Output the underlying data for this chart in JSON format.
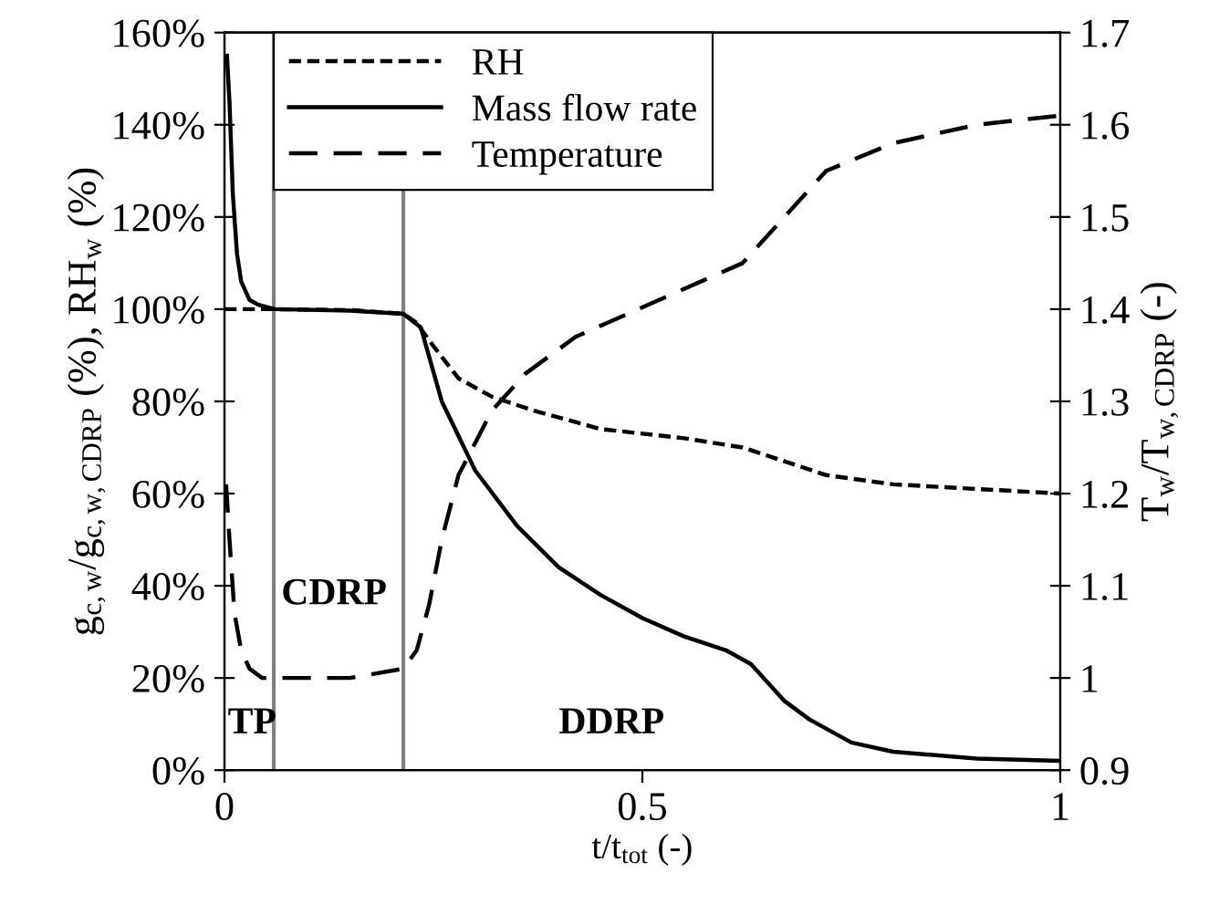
{
  "chart_data": {
    "type": "line",
    "xlabel": "t/t$_{tot}$ (-)",
    "ylabel": "g$_{c,w}$/g$_{c,w,CDRP}$ (%), RH$_{w}$ (%)",
    "y2label": "T$_{w}$/T$_{w,CDRP}$ (-)",
    "series": [
      {
        "name": "RH",
        "color": "#000000",
        "line_style": "dotted",
        "x": [
          0,
          0.06,
          0.15,
          0.214,
          0.23,
          0.25,
          0.28,
          0.32,
          0.37,
          0.45,
          0.55,
          0.62,
          0.67,
          0.72,
          0.8,
          0.9,
          1
        ],
        "values": [
          100,
          100,
          99.8,
          99,
          97,
          92,
          85,
          81,
          78,
          74,
          72,
          70,
          67,
          64,
          62,
          61,
          60
        ]
      },
      {
        "name": "Mass flow rate",
        "color": "#000000",
        "line_style": "solid",
        "x": [
          0.003,
          0.006,
          0.01,
          0.015,
          0.02,
          0.03,
          0.04,
          0.06,
          0.15,
          0.214,
          0.235,
          0.26,
          0.3,
          0.35,
          0.4,
          0.45,
          0.5,
          0.55,
          0.6,
          0.63,
          0.67,
          0.7,
          0.75,
          0.8,
          0.9,
          1
        ],
        "values": [
          155,
          145,
          125,
          112,
          106,
          102,
          101,
          100,
          99.7,
          99,
          96,
          80,
          65,
          53,
          44,
          38,
          33,
          29,
          26,
          23,
          15,
          11,
          6,
          4,
          2.5,
          2
        ]
      },
      {
        "name": "Temperature",
        "color": "#000000",
        "line_style": "dashed",
        "axis": "y2",
        "x": [
          0.002,
          0.006,
          0.012,
          0.02,
          0.03,
          0.045,
          0.06,
          0.15,
          0.214,
          0.23,
          0.245,
          0.26,
          0.28,
          0.32,
          0.36,
          0.42,
          0.52,
          0.62,
          0.67,
          0.72,
          0.8,
          0.9,
          1
        ],
        "values": [
          1.21,
          1.15,
          1.07,
          1.03,
          1.01,
          1.0,
          1.0,
          1.0,
          1.01,
          1.03,
          1.08,
          1.15,
          1.22,
          1.29,
          1.33,
          1.37,
          1.41,
          1.45,
          1.5,
          1.55,
          1.58,
          1.6,
          1.61
        ]
      }
    ],
    "xlim": [
      0,
      1
    ],
    "xticks": [
      0,
      0.5,
      1
    ],
    "ylim": [
      0,
      160
    ],
    "yticks": [
      {
        "value": 0,
        "label": "0%"
      },
      {
        "value": 20,
        "label": "20%"
      },
      {
        "value": 40,
        "label": "40%"
      },
      {
        "value": 60,
        "label": "60%"
      },
      {
        "value": 80,
        "label": "80%"
      },
      {
        "value": 100,
        "label": "100%"
      },
      {
        "value": 120,
        "label": "120%"
      },
      {
        "value": 140,
        "label": "140%"
      },
      {
        "value": 160,
        "label": "160%"
      }
    ],
    "y2lim": [
      0.9,
      1.7
    ],
    "y2ticks": [
      0.9,
      1,
      1.1,
      1.2,
      1.3,
      1.4,
      1.5,
      1.6,
      1.7
    ],
    "ref_lines": [
      {
        "axis": "x",
        "value": 0.059,
        "color": "#808080"
      },
      {
        "axis": "x",
        "value": 0.214,
        "color": "#808080"
      }
    ],
    "annotations": [
      "TP",
      "CDRP",
      "DDRP"
    ],
    "legend": "top",
    "grid": false
  }
}
